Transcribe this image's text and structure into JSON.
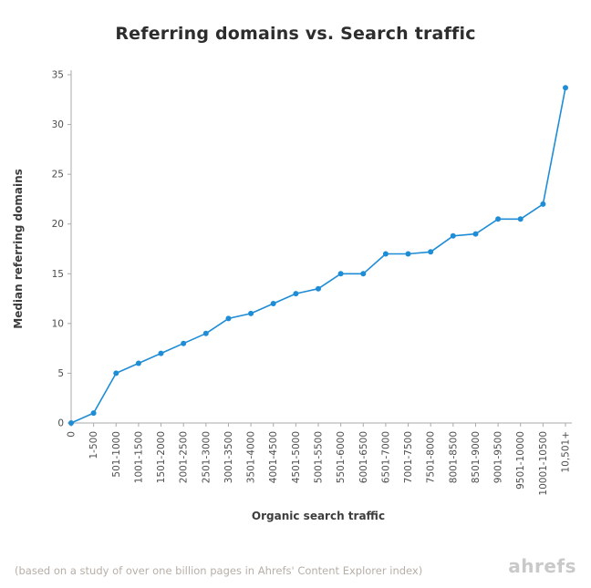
{
  "page": {
    "title": "Referring domains vs. Search traffic",
    "footnote": "(based on a study of over one billion pages in Ahrefs' Content Explorer index)",
    "brand": "ahrefs"
  },
  "chart_data": {
    "type": "line",
    "title": "Referring domains vs. Search traffic",
    "xlabel": "Organic search traffic",
    "ylabel": "Median referring domains",
    "categories": [
      "0",
      "1-500",
      "501-1000",
      "1001-1500",
      "1501-2000",
      "2001-2500",
      "2501-3000",
      "3001-3500",
      "3501-4000",
      "4001-4500",
      "4501-5000",
      "5001-5500",
      "5501-6000",
      "6001-6500",
      "6501-7000",
      "7001-7500",
      "7501-8000",
      "8001-8500",
      "8501-9000",
      "9001-9500",
      "9501-10000",
      "10001-10500",
      "10,501+"
    ],
    "values": [
      0,
      1,
      5,
      6,
      7,
      8,
      9,
      10.5,
      11,
      12,
      13,
      13.5,
      15,
      15,
      17,
      17,
      17.2,
      18.8,
      19,
      20.5,
      20.5,
      22,
      33.7
    ],
    "ylim": [
      0,
      35
    ],
    "yticks": [
      0,
      5,
      10,
      15,
      20,
      25,
      30,
      35
    ],
    "grid": false,
    "legend": "none",
    "line_color": "#1f8dd6",
    "marker": "circle",
    "axis_color": "#aaaaaa"
  }
}
